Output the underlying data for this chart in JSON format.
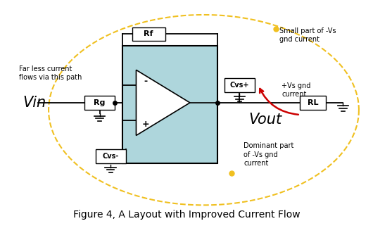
{
  "title": "Figure 4, A Layout with Improved Current Flow",
  "bg_color": "#ffffff",
  "opamp_fill": "#aed6dc",
  "yellow": "#f0c020",
  "red": "#cc0000",
  "black": "#000000",
  "annotation_far_less": "Far less current\nflows via this path",
  "annotation_small_part": "Small part of -Vs\ngnd current",
  "annotation_plus_vs": "+Vs gnd\ncurrent",
  "annotation_dominant": "Dominant part\nof -Vs gnd\ncurrent"
}
